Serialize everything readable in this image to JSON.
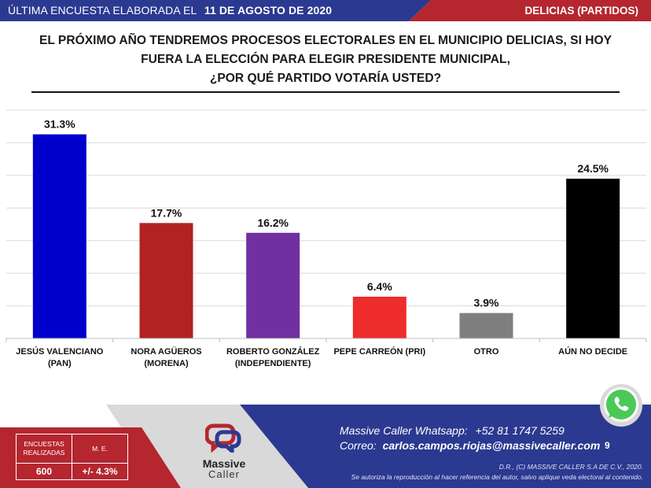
{
  "header": {
    "left_text": "ÚLTIMA ENCUESTA ELABORADA EL",
    "date": "11 DE AGOSTO DE 2020",
    "right_text": "DELICIAS (PARTIDOS)"
  },
  "question": {
    "lines": [
      "EL PRÓXIMO AÑO TENDREMOS PROCESOS ELECTORALES EN EL MUNICIPIO DELICIAS, SI HOY",
      "FUERA LA ELECCIÓN PARA ELEGIR PRESIDENTE MUNICIPAL,",
      "¿POR QUÉ PARTIDO VOTARÍA USTED?"
    ]
  },
  "chart_data": {
    "type": "bar",
    "categories": [
      [
        "JESÚS VALENCIANO",
        "(PAN)"
      ],
      [
        "NORA AGÜEROS",
        "(MORENA)"
      ],
      [
        "ROBERTO GONZÁLEZ",
        "(INDEPENDIENTE)"
      ],
      [
        "PEPE CARREÓN (PRI)"
      ],
      [
        "OTRO"
      ],
      [
        "AÚN NO DECIDE"
      ]
    ],
    "values": [
      31.3,
      17.7,
      16.2,
      6.4,
      3.9,
      24.5
    ],
    "value_labels": [
      "31.3%",
      "17.7%",
      "16.2%",
      "6.4%",
      "3.9%",
      "24.5%"
    ],
    "colors": [
      "#0000cc",
      "#b22222",
      "#7030a0",
      "#ee2c2c",
      "#7f7f7f",
      "#000000"
    ],
    "ylim": [
      0,
      35
    ],
    "grid": true
  },
  "footer": {
    "table": {
      "col1_header": [
        "ENCUESTAS",
        "REALIZADAS"
      ],
      "col2_header": "M. E.",
      "col1_value": "600",
      "col2_value": "+/- 4.3%"
    },
    "logo": {
      "word1": "Massive",
      "word2": "Caller"
    },
    "whatsapp_label": "Massive Caller Whatsapp:",
    "whatsapp_number": "+52 81 1747 5259",
    "email_label": "Correo:",
    "email": "carlos.campos.riojas@massivecaller.com",
    "page_number": "9",
    "copyright": "D.R., (C) MASSIVE CALLER S.A DE C.V., 2020.",
    "disclaimer": "Se autoriza la reproducción al hacer referencia del autor, salvo aplique veda electoral al contenido.",
    "colors": {
      "navy": "#2b3990",
      "red": "#b5262f",
      "gray": "#d9d9d9"
    },
    "icons": [
      "whatsapp-icon",
      "massive-caller-logo"
    ]
  }
}
